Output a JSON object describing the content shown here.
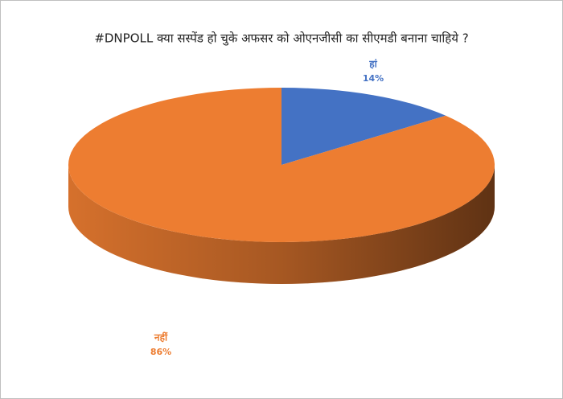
{
  "chart_data": {
    "type": "pie",
    "title": "#DNPOLL क्या सस्पेंड हो चुके अफसर को ओएनजीसी का सीएमडी बनाना चाहिये ?",
    "categories": [
      "हां",
      "नहीं"
    ],
    "values": [
      14,
      86
    ],
    "value_labels": [
      "14%",
      "86%"
    ],
    "colors": [
      "#4472c4",
      "#ed7d31"
    ]
  }
}
